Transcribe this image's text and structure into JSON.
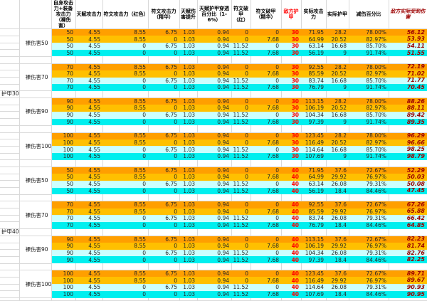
{
  "table": {
    "headers": [
      "自身攻击力+装备攻击力（裸伤害）",
      "天赋攻击力",
      "符文攻击力（红色）",
      "符文攻击力（精华）",
      "天赋伤害提升",
      "天赋护甲穿透百分比（1-6%）",
      "符文破甲（红）",
      "符文破甲（精华）",
      "敌方护甲",
      "实际攻击力",
      "实际护甲",
      "减伤百分比",
      "敌方实际受到伤害"
    ],
    "blocks": [
      {
        "armor_label": "护甲30",
        "groups": [
          {
            "label": "裸伤害50",
            "rows": [
              [
                "50",
                "4.55",
                "8.55",
                "6.75",
                "1.03",
                "0.94",
                "0",
                "0",
                "30",
                "71.95",
                "28.2",
                "78.00%",
                "56.12"
              ],
              [
                "50",
                "4.55",
                "8.55",
                "0",
                "1.03",
                "0.94",
                "0",
                "7.68",
                "30",
                "64.99",
                "20.52",
                "82.97%",
                "53.93"
              ],
              [
                "50",
                "4.55",
                "0",
                "6.75",
                "1.03",
                "0.94",
                "11.52",
                "0",
                "30",
                "63.14",
                "16.68",
                "85.70%",
                "54.11"
              ],
              [
                "50",
                "4.55",
                "0",
                "0",
                "1.03",
                "0.94",
                "11.52",
                "7.68",
                "30",
                "56.19",
                "9",
                "91.74%",
                "51.55"
              ]
            ]
          },
          {
            "label": "裸伤害70",
            "rows": [
              [
                "70",
                "4.55",
                "8.55",
                "6.75",
                "1.03",
                "0.94",
                "0",
                "0",
                "30",
                "92.55",
                "28.2",
                "78.00%",
                "72.19"
              ],
              [
                "70",
                "4.55",
                "8.55",
                "0",
                "1.03",
                "0.94",
                "0",
                "7.68",
                "30",
                "85.59",
                "20.52",
                "82.97%",
                "71.02"
              ],
              [
                "70",
                "4.55",
                "0",
                "6.75",
                "1.03",
                "0.94",
                "11.52",
                "0",
                "30",
                "83.74",
                "16.68",
                "85.70%",
                "71.77"
              ],
              [
                "70",
                "4.55",
                "0",
                "0",
                "1.03",
                "0.94",
                "11.52",
                "7.68",
                "30",
                "76.79",
                "9",
                "91.74%",
                "70.45"
              ]
            ]
          },
          {
            "label": "裸伤害90",
            "rows": [
              [
                "90",
                "4.55",
                "8.55",
                "6.75",
                "1.03",
                "0.94",
                "0",
                "0",
                "30",
                "113.15",
                "28.2",
                "78.00%",
                "88.26"
              ],
              [
                "90",
                "4.55",
                "8.55",
                "0",
                "1.03",
                "0.94",
                "0",
                "7.68",
                "30",
                "106.19",
                "20.52",
                "82.97%",
                "88.11"
              ],
              [
                "90",
                "4.55",
                "0",
                "6.75",
                "1.03",
                "0.94",
                "11.52",
                "0",
                "30",
                "104.34",
                "16.68",
                "85.70%",
                "89.42"
              ],
              [
                "90",
                "4.55",
                "0",
                "0",
                "1.03",
                "0.94",
                "11.52",
                "7.68",
                "30",
                "97.39",
                "9",
                "91.74%",
                "89.35"
              ]
            ]
          },
          {
            "label": "裸伤害100",
            "rows": [
              [
                "100",
                "4.55",
                "8.55",
                "6.75",
                "1.03",
                "0.94",
                "0",
                "0",
                "30",
                "123.45",
                "28.2",
                "78.00%",
                "96.29"
              ],
              [
                "100",
                "4.55",
                "8.55",
                "0",
                "1.03",
                "0.94",
                "0",
                "7.68",
                "30",
                "116.49",
                "20.52",
                "82.97%",
                "96.66"
              ],
              [
                "100",
                "4.55",
                "0",
                "6.75",
                "1.03",
                "0.94",
                "11.52",
                "0",
                "30",
                "114.64",
                "16.68",
                "85.70%",
                "98.25"
              ],
              [
                "100",
                "4.55",
                "0",
                "0",
                "1.03",
                "0.94",
                "11.52",
                "7.68",
                "30",
                "107.69",
                "9",
                "91.74%",
                "98.79"
              ]
            ]
          }
        ]
      },
      {
        "armor_label": "护甲40",
        "groups": [
          {
            "label": "裸伤害50",
            "rows": [
              [
                "50",
                "4.55",
                "8.55",
                "6.75",
                "1.03",
                "0.94",
                "0",
                "0",
                "40",
                "71.95",
                "37.6",
                "72.67%",
                "52.29"
              ],
              [
                "50",
                "4.55",
                "8.55",
                "0",
                "1.03",
                "0.94",
                "0",
                "7.68",
                "40",
                "64.99",
                "29.92",
                "76.97%",
                "50.03"
              ],
              [
                "50",
                "4.55",
                "0",
                "6.75",
                "1.03",
                "0.94",
                "11.52",
                "0",
                "40",
                "63.14",
                "26.08",
                "79.31%",
                "50.08"
              ],
              [
                "50",
                "4.55",
                "0",
                "0",
                "1.03",
                "0.94",
                "11.52",
                "7.68",
                "40",
                "56.19",
                "18.4",
                "84.46%",
                "47.45"
              ]
            ]
          },
          {
            "label": "裸伤害70",
            "rows": [
              [
                "70",
                "4.55",
                "8.55",
                "6.75",
                "1.03",
                "0.94",
                "0",
                "0",
                "40",
                "92.55",
                "37.6",
                "72.67%",
                "67.26"
              ],
              [
                "70",
                "4.55",
                "8.55",
                "0",
                "1.03",
                "0.94",
                "0",
                "7.68",
                "40",
                "85.59",
                "29.92",
                "76.97%",
                "65.88"
              ],
              [
                "70",
                "4.55",
                "0",
                "6.75",
                "1.03",
                "0.94",
                "11.52",
                "0",
                "40",
                "83.74",
                "26.08",
                "79.31%",
                "66.42"
              ],
              [
                "70",
                "4.55",
                "0",
                "0",
                "1.03",
                "0.94",
                "11.52",
                "7.68",
                "40",
                "76.79",
                "18.4",
                "84.46%",
                "64.85"
              ]
            ]
          },
          {
            "label": "裸伤害90",
            "rows": [
              [
                "90",
                "4.55",
                "8.55",
                "6.75",
                "1.03",
                "0.94",
                "0",
                "0",
                "40",
                "113.15",
                "37.6",
                "72.67%",
                "82.23"
              ],
              [
                "90",
                "4.55",
                "8.55",
                "0",
                "1.03",
                "0.94",
                "0",
                "7.68",
                "40",
                "106.19",
                "29.92",
                "76.97%",
                "81.74"
              ],
              [
                "90",
                "4.55",
                "0",
                "6.75",
                "1.03",
                "0.94",
                "11.52",
                "0",
                "40",
                "104.34",
                "26.08",
                "79.31%",
                "82.76"
              ],
              [
                "90",
                "4.55",
                "0",
                "0",
                "1.03",
                "0.94",
                "11.52",
                "7.68",
                "40",
                "97.39",
                "18.4",
                "84.46%",
                "82.25"
              ]
            ]
          },
          {
            "label": "裸伤害100",
            "rows": [
              [
                "100",
                "4.55",
                "8.55",
                "6.75",
                "1.03",
                "0.94",
                "0",
                "0",
                "40",
                "123.45",
                "37.6",
                "72.67%",
                "89.71"
              ],
              [
                "100",
                "4.55",
                "8.55",
                "0",
                "1.03",
                "0.94",
                "0",
                "7.68",
                "40",
                "116.49",
                "29.92",
                "76.97%",
                "89.67"
              ],
              [
                "100",
                "4.55",
                "0",
                "6.75",
                "1.03",
                "0.94",
                "11.52",
                "0",
                "40",
                "114.64",
                "26.08",
                "79.31%",
                "90.93"
              ],
              [
                "100",
                "4.55",
                "0",
                "0",
                "1.03",
                "0.94",
                "11.52",
                "7.68",
                "40",
                "107.69",
                "18.4",
                "84.46%",
                "90.95"
              ]
            ]
          }
        ]
      }
    ]
  },
  "colors": {
    "row_orange": "#FF9F00",
    "row_gold": "#FFC000",
    "row_pale_cyan": "#CCFFFF",
    "row_cyan": "#00EFEF",
    "number_text": "#262626",
    "enemy_armor_red": "#FF0000",
    "final_damage_red": "#9C0000",
    "gridline": "#D9D9D9"
  }
}
